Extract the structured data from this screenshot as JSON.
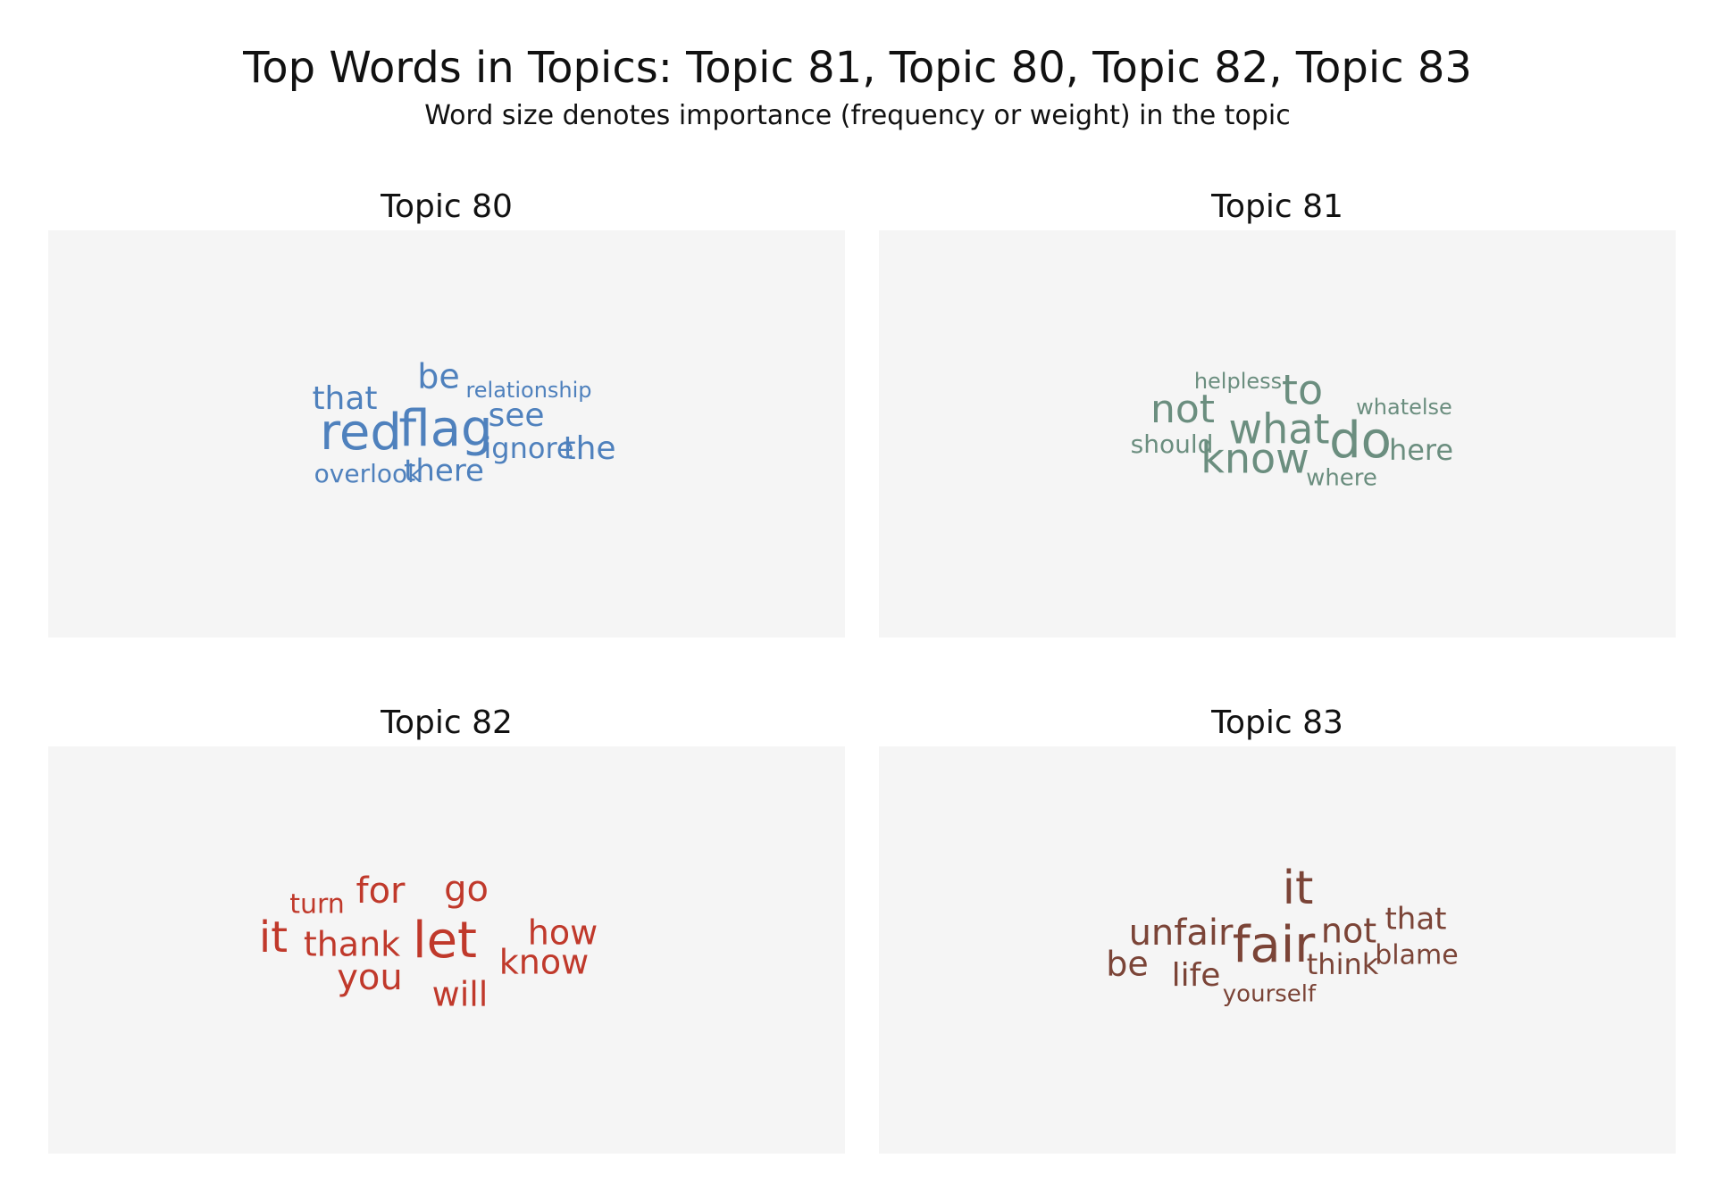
{
  "title": "Top Words in Topics: Topic 81, Topic 80, Topic 82, Topic 83",
  "subtitle": "Word size denotes importance (frequency or weight) in the topic",
  "chart_data": [
    {
      "type": "wordcloud",
      "title": "Topic 80",
      "color": "#4f81bd",
      "words": [
        {
          "text": "red",
          "weight": 1.0
        },
        {
          "text": "flag",
          "weight": 1.0
        },
        {
          "text": "be",
          "weight": 0.55
        },
        {
          "text": "that",
          "weight": 0.5
        },
        {
          "text": "see",
          "weight": 0.5
        },
        {
          "text": "the",
          "weight": 0.5
        },
        {
          "text": "ignore",
          "weight": 0.4
        },
        {
          "text": "there",
          "weight": 0.45
        },
        {
          "text": "overlook",
          "weight": 0.3
        },
        {
          "text": "relationship",
          "weight": 0.2
        }
      ]
    },
    {
      "type": "wordcloud",
      "title": "Topic 81",
      "color": "#6b8e7f",
      "words": [
        {
          "text": "do",
          "weight": 1.0
        },
        {
          "text": "what",
          "weight": 0.75
        },
        {
          "text": "know",
          "weight": 0.75
        },
        {
          "text": "to",
          "weight": 0.75
        },
        {
          "text": "not",
          "weight": 0.7
        },
        {
          "text": "here",
          "weight": 0.4
        },
        {
          "text": "should",
          "weight": 0.3
        },
        {
          "text": "where",
          "weight": 0.25
        },
        {
          "text": "whatelse",
          "weight": 0.2
        },
        {
          "text": "helpless",
          "weight": 0.2
        }
      ]
    },
    {
      "type": "wordcloud",
      "title": "Topic 82",
      "color": "#c0392b",
      "words": [
        {
          "text": "let",
          "weight": 1.0
        },
        {
          "text": "it",
          "weight": 0.8
        },
        {
          "text": "you",
          "weight": 0.6
        },
        {
          "text": "for",
          "weight": 0.6
        },
        {
          "text": "go",
          "weight": 0.6
        },
        {
          "text": "how",
          "weight": 0.55
        },
        {
          "text": "know",
          "weight": 0.55
        },
        {
          "text": "thank",
          "weight": 0.55
        },
        {
          "text": "will",
          "weight": 0.55
        },
        {
          "text": "turn",
          "weight": 0.35
        }
      ]
    },
    {
      "type": "wordcloud",
      "title": "Topic 83",
      "color": "#7b4437",
      "words": [
        {
          "text": "fair",
          "weight": 1.0
        },
        {
          "text": "it",
          "weight": 0.9
        },
        {
          "text": "unfair",
          "weight": 0.6
        },
        {
          "text": "not",
          "weight": 0.55
        },
        {
          "text": "be",
          "weight": 0.55
        },
        {
          "text": "life",
          "weight": 0.5
        },
        {
          "text": "that",
          "weight": 0.45
        },
        {
          "text": "think",
          "weight": 0.4
        },
        {
          "text": "blame",
          "weight": 0.35
        },
        {
          "text": "yourself",
          "weight": 0.25
        }
      ]
    }
  ]
}
